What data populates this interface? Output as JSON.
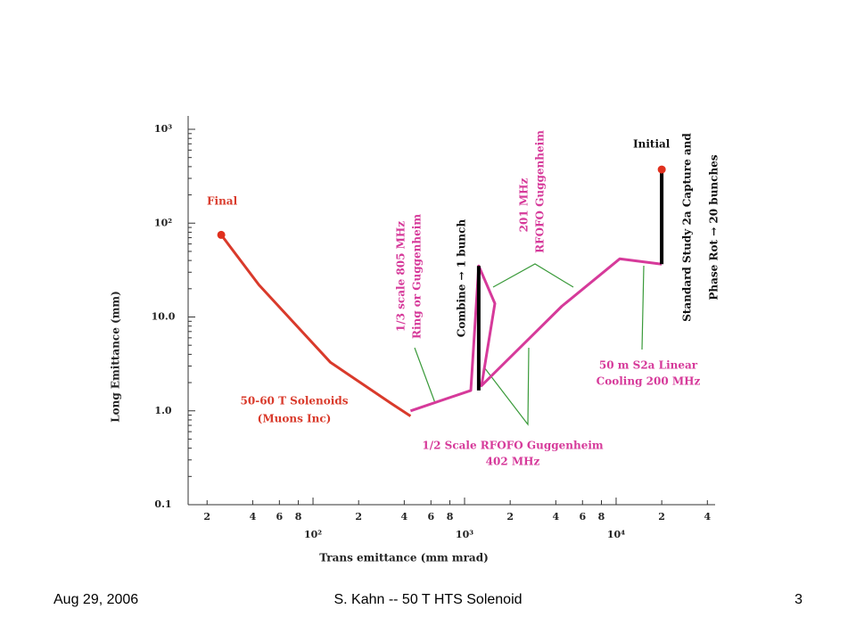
{
  "chart_data": {
    "type": "line",
    "x_label": "Trans emittance (mm mrad)",
    "y_label": "Long Emittance (mm)",
    "log_x": true,
    "log_y": true,
    "xlim": [
      15,
      45000
    ],
    "ylim": [
      0.1,
      1000
    ],
    "yticks": [
      {
        "value": 1000,
        "label": "10³"
      },
      {
        "value": 100,
        "label": "10²"
      },
      {
        "value": 10,
        "label": "10.0"
      },
      {
        "value": 1,
        "label": "1.0"
      },
      {
        "value": 0.1,
        "label": "0.1"
      }
    ],
    "yminorticks": [
      0.2,
      0.3,
      0.4,
      0.5,
      0.6,
      0.7,
      0.8,
      0.9,
      2,
      3,
      4,
      5,
      6,
      7,
      8,
      9,
      20,
      30,
      40,
      50,
      60,
      70,
      80,
      90,
      200,
      300,
      400,
      500,
      600,
      700,
      800,
      900
    ],
    "xticks": [
      {
        "value": 20,
        "label": "2"
      },
      {
        "value": 40,
        "label": "4"
      },
      {
        "value": 60,
        "label": "6"
      },
      {
        "value": 80,
        "label": "8"
      },
      {
        "value": 100,
        "label": "10²"
      },
      {
        "value": 200,
        "label": "2"
      },
      {
        "value": 400,
        "label": "4"
      },
      {
        "value": 600,
        "label": "6"
      },
      {
        "value": 800,
        "label": "8"
      },
      {
        "value": 1000,
        "label": "10³"
      },
      {
        "value": 2000,
        "label": "2"
      },
      {
        "value": 4000,
        "label": "4"
      },
      {
        "value": 6000,
        "label": "6"
      },
      {
        "value": 8000,
        "label": "8"
      },
      {
        "value": 10000,
        "label": "10⁴"
      },
      {
        "value": 20000,
        "label": "2"
      },
      {
        "value": 40000,
        "label": "4"
      }
    ],
    "series": [
      {
        "name": "50-60 T Solenoids",
        "color": "#d93a2b",
        "x": [
          24.8,
          44,
          130,
          330,
          440
        ],
        "values": [
          75,
          22,
          3.3,
          1.19,
          0.88
        ]
      },
      {
        "name": "RFOFO Guggenheim",
        "color": "#d63a9a",
        "x": [
          440,
          1100,
          1240,
          1585,
          1294,
          4375,
          10560,
          20000
        ],
        "values": [
          1.0,
          1.65,
          35,
          13.9,
          1.85,
          13,
          41.6,
          36.5
        ]
      },
      {
        "name": "Combine",
        "color": "#000000",
        "x": [
          1240,
          1240
        ],
        "values": [
          35,
          1.65
        ]
      },
      {
        "name": "Capture",
        "color": "#000000",
        "x": [
          20000,
          20000
        ],
        "values": [
          373,
          36.5
        ]
      }
    ],
    "points": {
      "color": "#e0301e",
      "x": [
        24.8,
        20000
      ],
      "values": [
        75,
        373
      ]
    },
    "annotations": [
      "Final",
      "Initial",
      "50-60 T Solenoids",
      "(Muons Inc)",
      "1/3 scale 805 MHz",
      "Ring or Guggenheim",
      "Combine → 1 bunch",
      "201 MHz",
      "RFOFO Guggenheim",
      "Standard Study 2a Capture and",
      "Phase Rot → 20 bunches",
      "50 m S2a Linear",
      "Cooling 200 MHz",
      "1/2 Scale RFOFO Guggenheim",
      "402 MHz"
    ]
  },
  "footer": {
    "date": "Aug 29, 2006",
    "title": "S. Kahn -- 50 T HTS Solenoid",
    "page": "3"
  }
}
